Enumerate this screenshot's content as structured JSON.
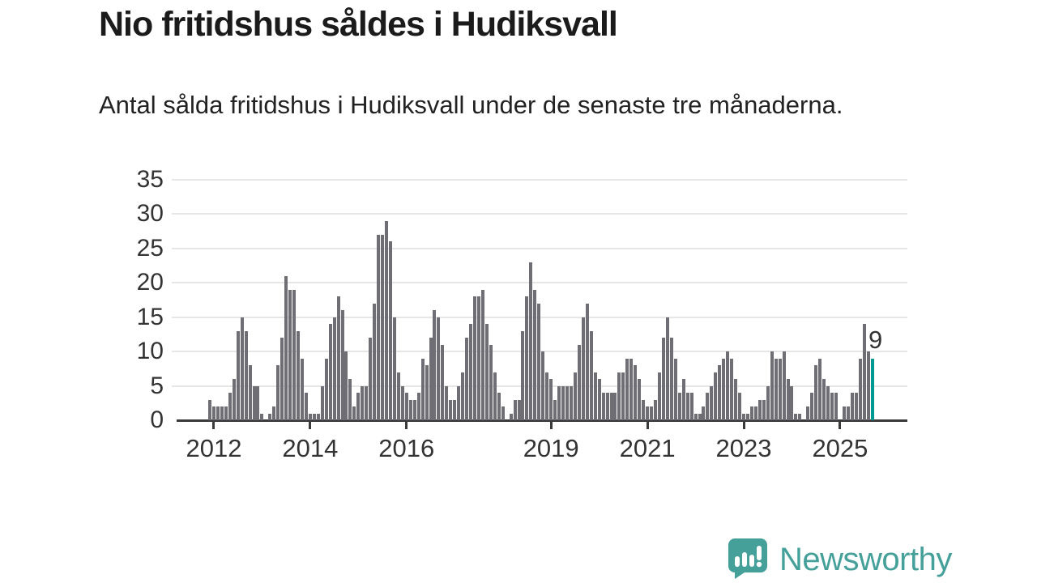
{
  "title": "Nio fritidshus såldes i Hudiksvall",
  "subtitle": "Antal sålda fritidshus i Hudiksvall under de senaste tre månaderna.",
  "annotation_label": "9",
  "logo": {
    "wordmark": "Newsworthy"
  },
  "colors": {
    "bar": "#6e6e74",
    "highlight": "#009a92",
    "grid": "#e6e6e6",
    "axis": "#3a3a3a",
    "text": "#333333",
    "brand": "#45a09a"
  },
  "chart_data": {
    "type": "bar",
    "title": "Nio fritidshus såldes i Hudiksvall",
    "subtitle": "Antal sålda fritidshus i Hudiksvall under de senaste tre månaderna.",
    "frequency": "monthly",
    "x_start_month": "2011-12",
    "xlabel": "",
    "ylabel": "",
    "ylim": [
      0,
      35
    ],
    "grid": true,
    "yticks": [
      0,
      5,
      10,
      15,
      20,
      25,
      30,
      35
    ],
    "xticks": [
      {
        "label": "2012",
        "index": 1
      },
      {
        "label": "2014",
        "index": 25
      },
      {
        "label": "2016",
        "index": 49
      },
      {
        "label": "2019",
        "index": 85
      },
      {
        "label": "2021",
        "index": 109
      },
      {
        "label": "2023",
        "index": 133
      },
      {
        "label": "2025",
        "index": 157
      }
    ],
    "values": [
      3,
      2,
      2,
      2,
      2,
      4,
      6,
      13,
      15,
      13,
      8,
      5,
      5,
      1,
      0,
      1,
      2,
      8,
      12,
      21,
      19,
      19,
      13,
      9,
      4,
      1,
      1,
      1,
      5,
      9,
      14,
      15,
      18,
      16,
      10,
      6,
      2,
      4,
      5,
      5,
      12,
      17,
      27,
      27,
      29,
      26,
      15,
      7,
      5,
      4,
      3,
      3,
      4,
      9,
      8,
      12,
      16,
      15,
      11,
      5,
      3,
      3,
      5,
      7,
      12,
      14,
      18,
      18,
      19,
      14,
      11,
      7,
      4,
      2,
      0,
      1,
      3,
      3,
      13,
      18,
      23,
      19,
      17,
      10,
      7,
      6,
      3,
      5,
      5,
      5,
      5,
      7,
      11,
      15,
      17,
      13,
      7,
      6,
      4,
      4,
      4,
      4,
      7,
      7,
      9,
      9,
      8,
      6,
      3,
      2,
      2,
      3,
      7,
      12,
      15,
      12,
      9,
      4,
      6,
      4,
      4,
      1,
      1,
      2,
      4,
      5,
      7,
      8,
      9,
      10,
      9,
      6,
      4,
      1,
      1,
      2,
      2,
      3,
      3,
      5,
      10,
      9,
      9,
      10,
      6,
      5,
      1,
      1,
      0,
      2,
      4,
      8,
      9,
      6,
      5,
      4,
      4,
      0,
      2,
      2,
      4,
      4,
      9,
      14,
      10,
      9
    ],
    "highlight": {
      "index": 165,
      "value": 9,
      "label": "9",
      "color": "#009a92"
    }
  }
}
